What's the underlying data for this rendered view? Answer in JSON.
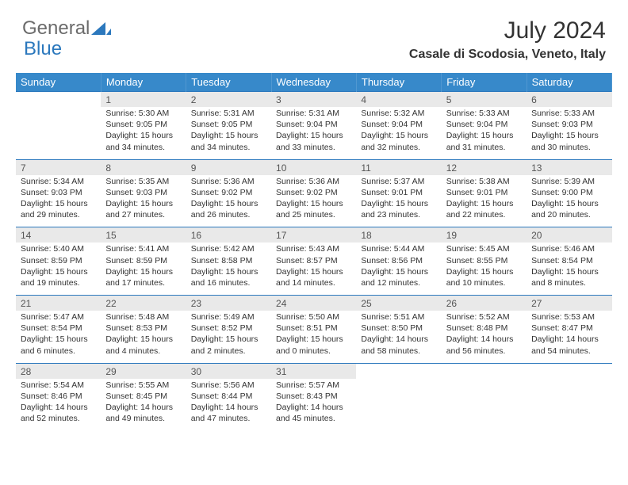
{
  "logo": {
    "text1": "General",
    "text2": "Blue"
  },
  "title": "July 2024",
  "location": "Casale di Scodosia, Veneto, Italy",
  "colors": {
    "brand": "#3789ca",
    "brand_dark": "#2b78bd",
    "header_text": "#ffffff",
    "daynum_bg": "#e9e9e9",
    "text": "#333333"
  },
  "day_headers": [
    "Sunday",
    "Monday",
    "Tuesday",
    "Wednesday",
    "Thursday",
    "Friday",
    "Saturday"
  ],
  "weeks": [
    [
      null,
      {
        "n": "1",
        "sr": "Sunrise: 5:30 AM",
        "ss": "Sunset: 9:05 PM",
        "dl": "Daylight: 15 hours and 34 minutes."
      },
      {
        "n": "2",
        "sr": "Sunrise: 5:31 AM",
        "ss": "Sunset: 9:05 PM",
        "dl": "Daylight: 15 hours and 34 minutes."
      },
      {
        "n": "3",
        "sr": "Sunrise: 5:31 AM",
        "ss": "Sunset: 9:04 PM",
        "dl": "Daylight: 15 hours and 33 minutes."
      },
      {
        "n": "4",
        "sr": "Sunrise: 5:32 AM",
        "ss": "Sunset: 9:04 PM",
        "dl": "Daylight: 15 hours and 32 minutes."
      },
      {
        "n": "5",
        "sr": "Sunrise: 5:33 AM",
        "ss": "Sunset: 9:04 PM",
        "dl": "Daylight: 15 hours and 31 minutes."
      },
      {
        "n": "6",
        "sr": "Sunrise: 5:33 AM",
        "ss": "Sunset: 9:03 PM",
        "dl": "Daylight: 15 hours and 30 minutes."
      }
    ],
    [
      {
        "n": "7",
        "sr": "Sunrise: 5:34 AM",
        "ss": "Sunset: 9:03 PM",
        "dl": "Daylight: 15 hours and 29 minutes."
      },
      {
        "n": "8",
        "sr": "Sunrise: 5:35 AM",
        "ss": "Sunset: 9:03 PM",
        "dl": "Daylight: 15 hours and 27 minutes."
      },
      {
        "n": "9",
        "sr": "Sunrise: 5:36 AM",
        "ss": "Sunset: 9:02 PM",
        "dl": "Daylight: 15 hours and 26 minutes."
      },
      {
        "n": "10",
        "sr": "Sunrise: 5:36 AM",
        "ss": "Sunset: 9:02 PM",
        "dl": "Daylight: 15 hours and 25 minutes."
      },
      {
        "n": "11",
        "sr": "Sunrise: 5:37 AM",
        "ss": "Sunset: 9:01 PM",
        "dl": "Daylight: 15 hours and 23 minutes."
      },
      {
        "n": "12",
        "sr": "Sunrise: 5:38 AM",
        "ss": "Sunset: 9:01 PM",
        "dl": "Daylight: 15 hours and 22 minutes."
      },
      {
        "n": "13",
        "sr": "Sunrise: 5:39 AM",
        "ss": "Sunset: 9:00 PM",
        "dl": "Daylight: 15 hours and 20 minutes."
      }
    ],
    [
      {
        "n": "14",
        "sr": "Sunrise: 5:40 AM",
        "ss": "Sunset: 8:59 PM",
        "dl": "Daylight: 15 hours and 19 minutes."
      },
      {
        "n": "15",
        "sr": "Sunrise: 5:41 AM",
        "ss": "Sunset: 8:59 PM",
        "dl": "Daylight: 15 hours and 17 minutes."
      },
      {
        "n": "16",
        "sr": "Sunrise: 5:42 AM",
        "ss": "Sunset: 8:58 PM",
        "dl": "Daylight: 15 hours and 16 minutes."
      },
      {
        "n": "17",
        "sr": "Sunrise: 5:43 AM",
        "ss": "Sunset: 8:57 PM",
        "dl": "Daylight: 15 hours and 14 minutes."
      },
      {
        "n": "18",
        "sr": "Sunrise: 5:44 AM",
        "ss": "Sunset: 8:56 PM",
        "dl": "Daylight: 15 hours and 12 minutes."
      },
      {
        "n": "19",
        "sr": "Sunrise: 5:45 AM",
        "ss": "Sunset: 8:55 PM",
        "dl": "Daylight: 15 hours and 10 minutes."
      },
      {
        "n": "20",
        "sr": "Sunrise: 5:46 AM",
        "ss": "Sunset: 8:54 PM",
        "dl": "Daylight: 15 hours and 8 minutes."
      }
    ],
    [
      {
        "n": "21",
        "sr": "Sunrise: 5:47 AM",
        "ss": "Sunset: 8:54 PM",
        "dl": "Daylight: 15 hours and 6 minutes."
      },
      {
        "n": "22",
        "sr": "Sunrise: 5:48 AM",
        "ss": "Sunset: 8:53 PM",
        "dl": "Daylight: 15 hours and 4 minutes."
      },
      {
        "n": "23",
        "sr": "Sunrise: 5:49 AM",
        "ss": "Sunset: 8:52 PM",
        "dl": "Daylight: 15 hours and 2 minutes."
      },
      {
        "n": "24",
        "sr": "Sunrise: 5:50 AM",
        "ss": "Sunset: 8:51 PM",
        "dl": "Daylight: 15 hours and 0 minutes."
      },
      {
        "n": "25",
        "sr": "Sunrise: 5:51 AM",
        "ss": "Sunset: 8:50 PM",
        "dl": "Daylight: 14 hours and 58 minutes."
      },
      {
        "n": "26",
        "sr": "Sunrise: 5:52 AM",
        "ss": "Sunset: 8:48 PM",
        "dl": "Daylight: 14 hours and 56 minutes."
      },
      {
        "n": "27",
        "sr": "Sunrise: 5:53 AM",
        "ss": "Sunset: 8:47 PM",
        "dl": "Daylight: 14 hours and 54 minutes."
      }
    ],
    [
      {
        "n": "28",
        "sr": "Sunrise: 5:54 AM",
        "ss": "Sunset: 8:46 PM",
        "dl": "Daylight: 14 hours and 52 minutes."
      },
      {
        "n": "29",
        "sr": "Sunrise: 5:55 AM",
        "ss": "Sunset: 8:45 PM",
        "dl": "Daylight: 14 hours and 49 minutes."
      },
      {
        "n": "30",
        "sr": "Sunrise: 5:56 AM",
        "ss": "Sunset: 8:44 PM",
        "dl": "Daylight: 14 hours and 47 minutes."
      },
      {
        "n": "31",
        "sr": "Sunrise: 5:57 AM",
        "ss": "Sunset: 8:43 PM",
        "dl": "Daylight: 14 hours and 45 minutes."
      },
      null,
      null,
      null
    ]
  ]
}
